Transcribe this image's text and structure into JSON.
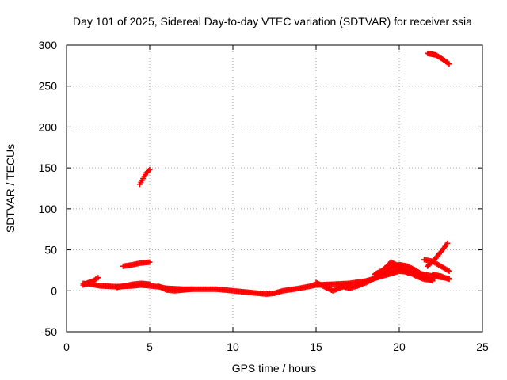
{
  "chart_data": {
    "type": "scatter",
    "title": "Day 101 of 2025, Sidereal Day-to-day VTEC variation (SDTVAR) for receiver ssia",
    "xlabel": "GPS time / hours",
    "ylabel": "SDTVAR / TECUs",
    "xlim": [
      0,
      25
    ],
    "ylim": [
      -50,
      300
    ],
    "xticks": [
      0,
      5,
      10,
      15,
      20,
      25
    ],
    "yticks": [
      -50,
      0,
      50,
      100,
      150,
      200,
      250,
      300
    ],
    "grid": true,
    "marker": "plus",
    "color": "#ff0000",
    "tracks": [
      [
        [
          1.0,
          9
        ],
        [
          1.5,
          8
        ],
        [
          2.0,
          6
        ],
        [
          3.0,
          5
        ],
        [
          4.0,
          6
        ],
        [
          4.5,
          7
        ],
        [
          5.0,
          6
        ],
        [
          5.5,
          5
        ],
        [
          6.0,
          3
        ],
        [
          7.0,
          2
        ],
        [
          8.0,
          2
        ],
        [
          9.0,
          2
        ],
        [
          10.0,
          0
        ],
        [
          11.0,
          -2
        ],
        [
          12.0,
          -4
        ],
        [
          12.5,
          -3
        ],
        [
          13.0,
          0
        ],
        [
          14.0,
          3
        ],
        [
          15.0,
          7
        ],
        [
          16.0,
          8
        ],
        [
          17.0,
          9
        ],
        [
          18.0,
          12
        ],
        [
          19.0,
          18
        ],
        [
          20.0,
          24
        ],
        [
          21.0,
          22
        ],
        [
          22.0,
          18
        ],
        [
          23.0,
          15
        ]
      ],
      [
        [
          1.0,
          7
        ],
        [
          1.3,
          10
        ],
        [
          1.6,
          12
        ],
        [
          1.9,
          16
        ]
      ],
      [
        [
          3.0,
          4
        ],
        [
          3.5,
          6
        ],
        [
          4.0,
          8
        ],
        [
          4.5,
          9
        ],
        [
          5.0,
          8
        ]
      ],
      [
        [
          5.5,
          6
        ],
        [
          6.0,
          1
        ],
        [
          6.5,
          0
        ],
        [
          7.0,
          1
        ],
        [
          7.5,
          2
        ]
      ],
      [
        [
          15.0,
          10
        ],
        [
          15.5,
          5
        ],
        [
          16.0,
          0
        ],
        [
          16.5,
          4
        ],
        [
          17.0,
          8
        ]
      ],
      [
        [
          16.5,
          6
        ],
        [
          17.0,
          3
        ],
        [
          17.5,
          6
        ],
        [
          18.0,
          10
        ],
        [
          18.5,
          15
        ],
        [
          19.0,
          20
        ],
        [
          19.5,
          28
        ],
        [
          20.0,
          32
        ],
        [
          20.5,
          30
        ],
        [
          21.0,
          25
        ],
        [
          21.5,
          18
        ],
        [
          22.0,
          12
        ]
      ],
      [
        [
          18.5,
          20
        ],
        [
          19.0,
          25
        ],
        [
          19.5,
          35
        ],
        [
          20.0,
          30
        ],
        [
          20.5,
          22
        ],
        [
          21.0,
          20
        ],
        [
          21.5,
          18
        ]
      ],
      [
        [
          19.5,
          22
        ],
        [
          20.0,
          26
        ],
        [
          20.5,
          24
        ],
        [
          21.0,
          18
        ],
        [
          21.5,
          14
        ],
        [
          22.0,
          13
        ]
      ],
      [
        [
          21.5,
          38
        ],
        [
          22.0,
          36
        ],
        [
          22.5,
          30
        ],
        [
          23.0,
          24
        ]
      ],
      [
        [
          21.7,
          30
        ],
        [
          22.2,
          40
        ],
        [
          22.6,
          50
        ],
        [
          22.9,
          58
        ]
      ],
      [
        [
          22.0,
          20
        ],
        [
          22.5,
          18
        ],
        [
          23.0,
          14
        ]
      ],
      [
        [
          3.4,
          30
        ],
        [
          4.0,
          32
        ],
        [
          4.5,
          34
        ],
        [
          5.0,
          35
        ]
      ],
      [
        [
          4.4,
          130
        ],
        [
          4.6,
          137
        ],
        [
          4.8,
          144
        ],
        [
          5.0,
          148
        ]
      ],
      [
        [
          21.7,
          290
        ],
        [
          22.2,
          288
        ],
        [
          22.6,
          283
        ],
        [
          23.0,
          277
        ]
      ]
    ]
  }
}
